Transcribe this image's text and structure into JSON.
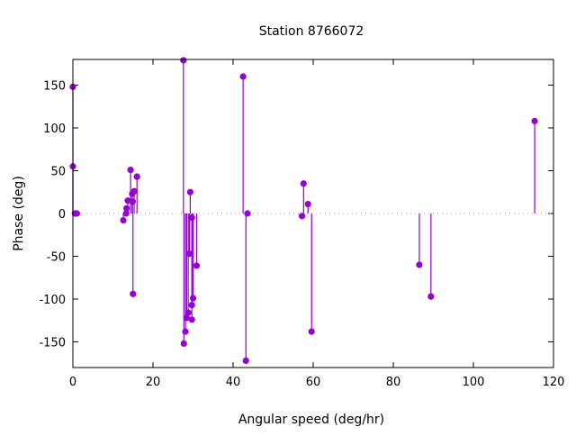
{
  "chart_data": {
    "type": "scatter",
    "style": "impulses with points",
    "title": "Station 8766072",
    "xlabel": "Angular speed (deg/hr)",
    "ylabel": "Phase (deg)",
    "xlim": [
      0,
      120
    ],
    "ylim": [
      -180,
      180
    ],
    "xticks": [
      0,
      20,
      40,
      60,
      80,
      100,
      120
    ],
    "yticks": [
      -150,
      -100,
      -50,
      0,
      50,
      100,
      150
    ],
    "zero_line": true,
    "grid": false,
    "color": "#9400d3",
    "points": [
      {
        "x": 0.0,
        "y": 148
      },
      {
        "x": 0.0,
        "y": 55
      },
      {
        "x": 0.5,
        "y": 0
      },
      {
        "x": 1.0,
        "y": 0
      },
      {
        "x": 12.6,
        "y": -8
      },
      {
        "x": 13.3,
        "y": 0
      },
      {
        "x": 13.4,
        "y": 6
      },
      {
        "x": 13.7,
        "y": 15
      },
      {
        "x": 14.4,
        "y": 51
      },
      {
        "x": 14.8,
        "y": 23
      },
      {
        "x": 14.9,
        "y": 14
      },
      {
        "x": 15.0,
        "y": -94
      },
      {
        "x": 15.3,
        "y": 26
      },
      {
        "x": 16.0,
        "y": 43
      },
      {
        "x": 27.6,
        "y": 179
      },
      {
        "x": 27.7,
        "y": -152
      },
      {
        "x": 28.1,
        "y": -138
      },
      {
        "x": 28.4,
        "y": -122
      },
      {
        "x": 28.8,
        "y": -116
      },
      {
        "x": 29.1,
        "y": -47
      },
      {
        "x": 29.3,
        "y": 25
      },
      {
        "x": 29.7,
        "y": -5
      },
      {
        "x": 29.7,
        "y": -107
      },
      {
        "x": 30.0,
        "y": -99
      },
      {
        "x": 29.7,
        "y": -124
      },
      {
        "x": 30.9,
        "y": -61
      },
      {
        "x": 42.5,
        "y": 160
      },
      {
        "x": 43.2,
        "y": -172
      },
      {
        "x": 43.6,
        "y": 0
      },
      {
        "x": 57.2,
        "y": -3
      },
      {
        "x": 57.6,
        "y": 35
      },
      {
        "x": 58.7,
        "y": 11
      },
      {
        "x": 59.6,
        "y": -138
      },
      {
        "x": 86.5,
        "y": -60
      },
      {
        "x": 89.4,
        "y": -97
      },
      {
        "x": 115.3,
        "y": 108
      }
    ]
  }
}
